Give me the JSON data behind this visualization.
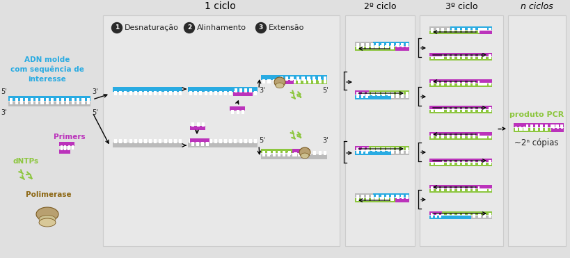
{
  "bg_outer": "#e0e0e0",
  "bg_panel": "#ebebeb",
  "color_blue": "#29ABE2",
  "color_gray": "#BBBBBB",
  "color_green": "#8DC63F",
  "color_magenta": "#BB33BB",
  "color_dark": "#222222",
  "color_brown_poly": "#B8A070",
  "color_brown_edge": "#7A5A20",
  "step1_label": "Desnaturação",
  "step2_label": "Alinhamento",
  "step3_label": "Extensão",
  "cycle1_label": "1 ciclo",
  "cycle2_label": "2º ciclo",
  "cycle3_label": "3º ciclo",
  "cycleN_label": "n ciclos",
  "label_adn": "ADN molde\ncom sequência de\ninteresse",
  "label_dntps": "dNTPs",
  "label_primers": "Primers",
  "label_polimerase": "Polimerase",
  "label_produto": "produto PCR",
  "label_copies": "~2ⁿ cópias"
}
